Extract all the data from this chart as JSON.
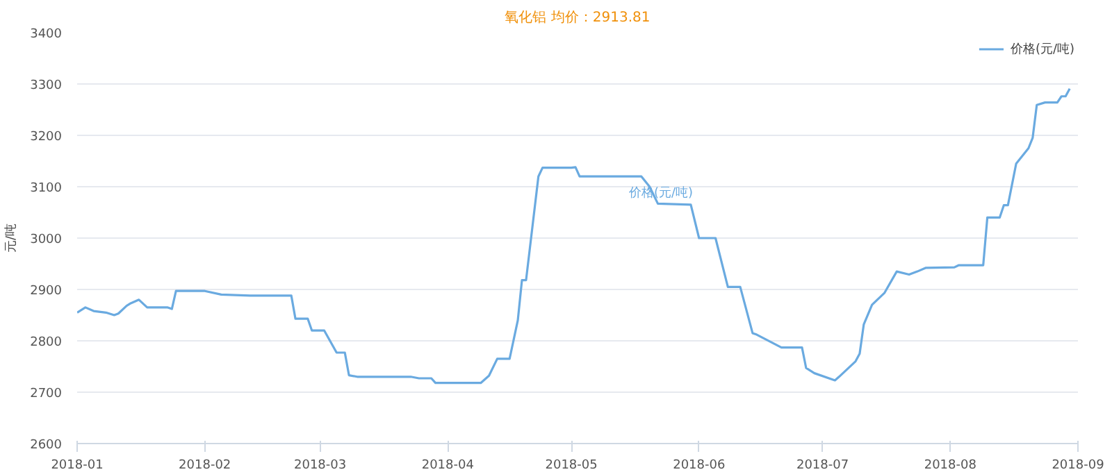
{
  "chart_data": {
    "type": "line",
    "title": "氧化铝 均价：2913.81",
    "ylabel": "元/吨",
    "x": [
      "2018-01-01",
      "2018-01-03",
      "2018-01-05",
      "2018-01-08",
      "2018-01-10",
      "2018-01-11",
      "2018-01-13",
      "2018-01-14",
      "2018-01-16",
      "2018-01-18",
      "2018-01-23",
      "2018-01-24",
      "2018-01-25",
      "2018-02-01",
      "2018-02-05",
      "2018-02-12",
      "2018-02-22",
      "2018-02-23",
      "2018-02-26",
      "2018-02-27",
      "2018-03-02",
      "2018-03-05",
      "2018-03-07",
      "2018-03-08",
      "2018-03-10",
      "2018-03-23",
      "2018-03-25",
      "2018-03-28",
      "2018-03-29",
      "2018-04-09",
      "2018-04-11",
      "2018-04-13",
      "2018-04-16",
      "2018-04-18",
      "2018-04-19",
      "2018-04-20",
      "2018-04-23",
      "2018-04-24",
      "2018-05-01",
      "2018-05-02",
      "2018-05-03",
      "2018-05-18",
      "2018-05-20",
      "2018-05-22",
      "2018-05-30",
      "2018-06-01",
      "2018-06-05",
      "2018-06-08",
      "2018-06-11",
      "2018-06-14",
      "2018-06-15",
      "2018-06-21",
      "2018-06-26",
      "2018-06-27",
      "2018-06-29",
      "2018-07-04",
      "2018-07-05",
      "2018-07-09",
      "2018-07-10",
      "2018-07-11",
      "2018-07-13",
      "2018-07-16",
      "2018-07-19",
      "2018-07-22",
      "2018-07-24",
      "2018-07-26",
      "2018-08-02",
      "2018-08-03",
      "2018-08-09",
      "2018-08-10",
      "2018-08-13",
      "2018-08-14",
      "2018-08-15",
      "2018-08-17",
      "2018-08-20",
      "2018-08-21",
      "2018-08-22",
      "2018-08-24",
      "2018-08-27",
      "2018-08-28",
      "2018-08-29",
      "2018-08-30"
    ],
    "series": [
      {
        "name": "价格(元/吨)",
        "color": "#6aaae0",
        "values": [
          2855,
          2865,
          2858,
          2855,
          2850,
          2853,
          2868,
          2873,
          2880,
          2865,
          2865,
          2862,
          2897,
          2897,
          2890,
          2888,
          2888,
          2843,
          2843,
          2820,
          2820,
          2777,
          2777,
          2733,
          2730,
          2730,
          2727,
          2727,
          2718,
          2718,
          2732,
          2765,
          2765,
          2840,
          2918,
          2918,
          3120,
          3137,
          3137,
          3138,
          3120,
          3120,
          3100,
          3067,
          3065,
          3000,
          3000,
          2905,
          2905,
          2815,
          2812,
          2787,
          2787,
          2747,
          2737,
          2723,
          2730,
          2760,
          2775,
          2832,
          2870,
          2893,
          2935,
          2929,
          2935,
          2942,
          2943,
          2947,
          2947,
          3040,
          3040,
          3064,
          3064,
          3145,
          3175,
          3195,
          3259,
          3264,
          3264,
          3276,
          3276,
          3291
        ]
      }
    ],
    "annotations": [
      "价格(元/吨)"
    ],
    "xlim": [
      "2018-01-01",
      "2018-09-01"
    ],
    "xticks": [
      {
        "value": "2018-01-01",
        "label": "2018-01"
      },
      {
        "value": "2018-02-01",
        "label": "2018-02"
      },
      {
        "value": "2018-03-01",
        "label": "2018-03"
      },
      {
        "value": "2018-04-01",
        "label": "2018-04"
      },
      {
        "value": "2018-05-01",
        "label": "2018-05"
      },
      {
        "value": "2018-06-01",
        "label": "2018-06"
      },
      {
        "value": "2018-07-01",
        "label": "2018-07"
      },
      {
        "value": "2018-08-01",
        "label": "2018-08"
      },
      {
        "value": "2018-09-01",
        "label": "2018-09"
      }
    ],
    "ylim": [
      2600,
      3400
    ],
    "yticks": [
      2600,
      2700,
      2800,
      2900,
      3000,
      3100,
      3200,
      3300,
      3400
    ],
    "grid": "y",
    "legend": "top right",
    "marker": "none",
    "line_style": "solid"
  }
}
